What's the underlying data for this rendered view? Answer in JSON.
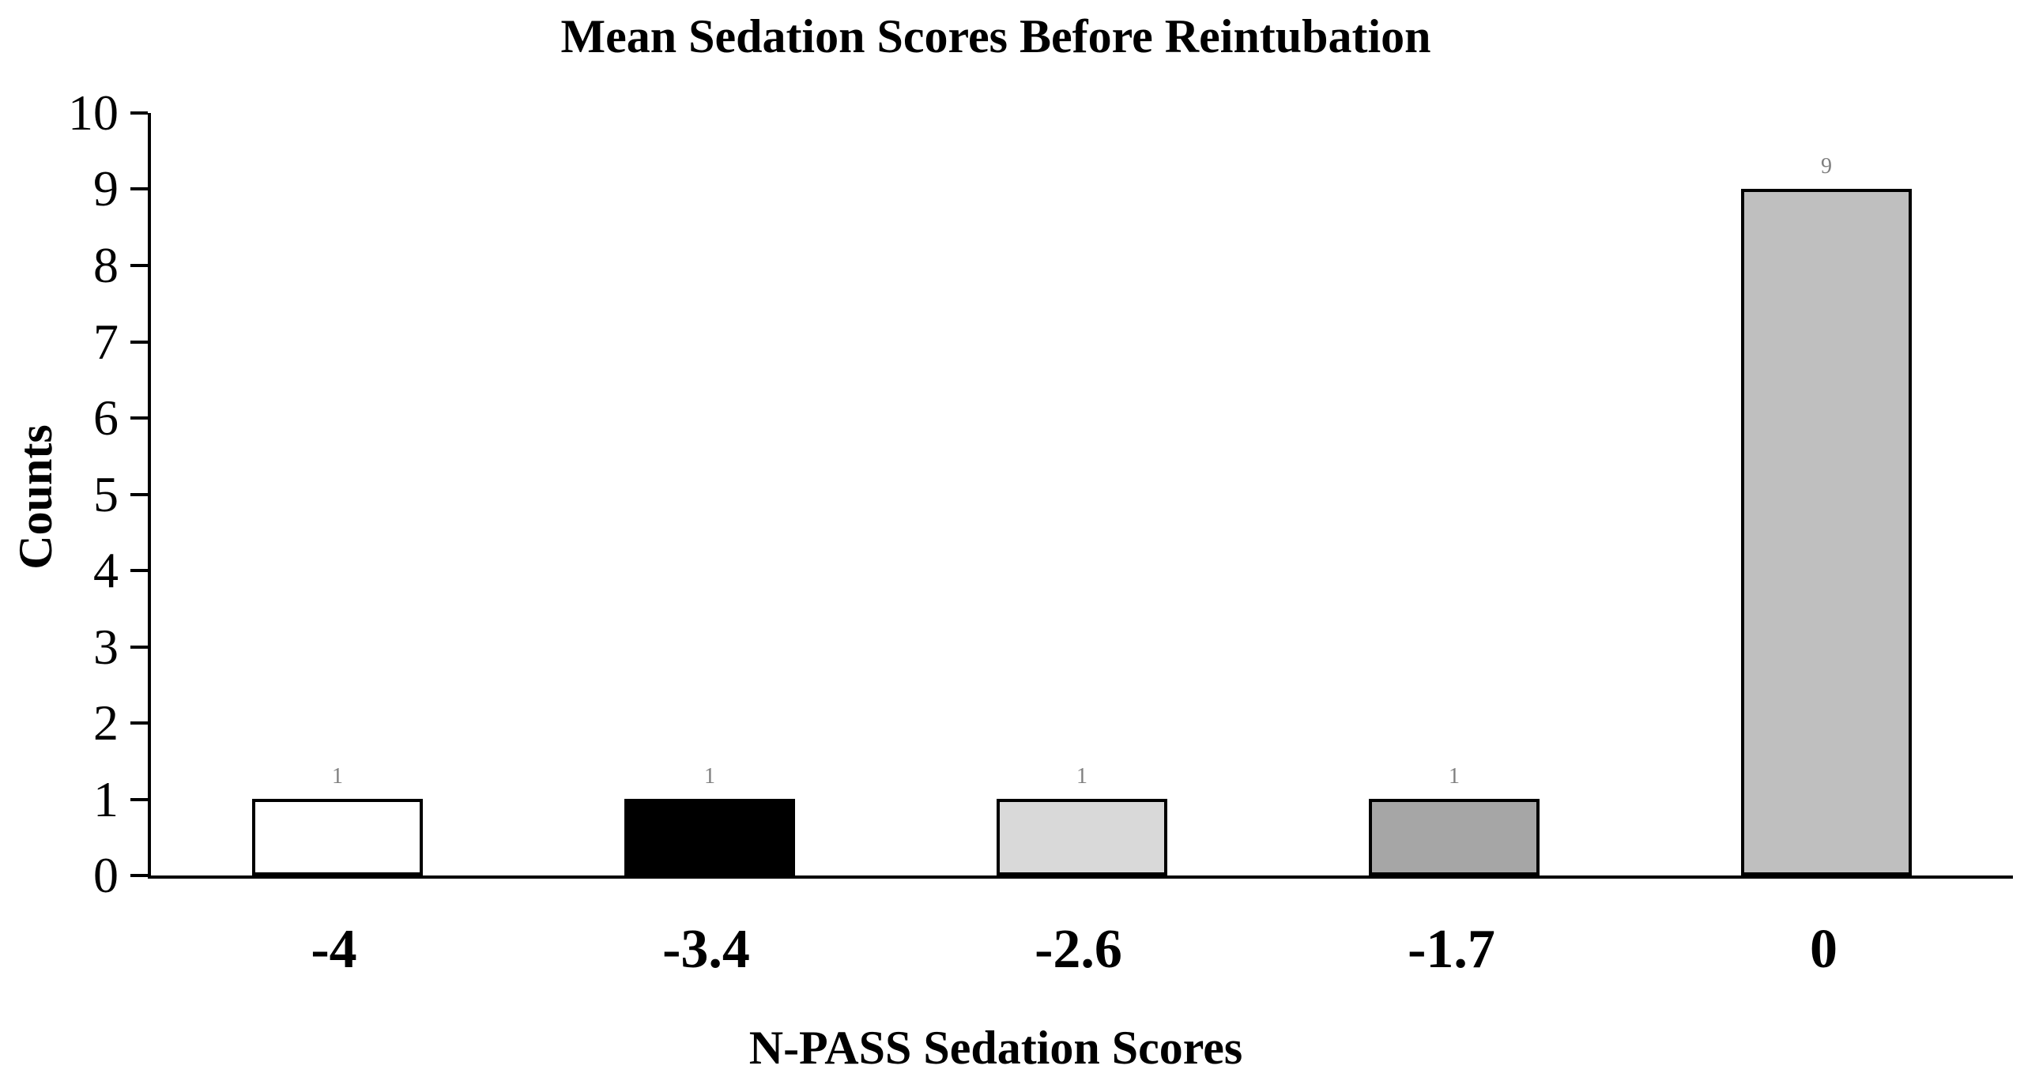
{
  "chart_data": {
    "type": "bar",
    "title": "Mean Sedation Scores Before Reintubation",
    "xlabel": "N-PASS Sedation Scores",
    "ylabel": "Counts",
    "categories": [
      "-4",
      "-3.4",
      "-2.6",
      "-1.7",
      "0"
    ],
    "values": [
      1,
      1,
      1,
      1,
      9
    ],
    "data_labels": [
      "1",
      "1",
      "1",
      "1",
      "9"
    ],
    "ylim": [
      0,
      10
    ],
    "yticks": [
      "0",
      "1",
      "2",
      "3",
      "4",
      "5",
      "6",
      "7",
      "8",
      "9",
      "10"
    ],
    "grid": false,
    "legend": "none",
    "bar_colors": [
      "#ffffff",
      "#000000",
      "#d9d9d9",
      "#a6a6a6",
      "#bfbfbf"
    ],
    "bar_border_color": "#000000",
    "data_label_color": "#7f7f7f",
    "axis_color": "#000000",
    "background_color": "#ffffff"
  }
}
